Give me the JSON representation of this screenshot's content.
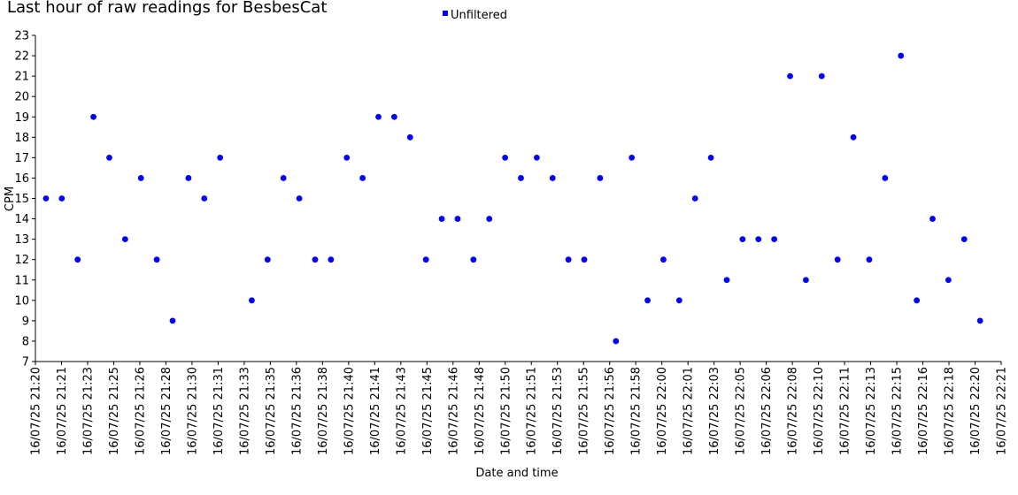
{
  "chart_data": {
    "type": "scatter",
    "title": "Last hour of raw readings for BesbesCat",
    "xlabel": "Date and time",
    "ylabel": "CPM",
    "ylim": [
      7,
      23
    ],
    "yticks": [
      7,
      8,
      9,
      10,
      11,
      12,
      13,
      14,
      15,
      16,
      17,
      18,
      19,
      20,
      21,
      22,
      23
    ],
    "xlim": [
      "16/07/25 21:20",
      "16/07/25 22:21"
    ],
    "xtick_labels": [
      "16/07/25 21:20",
      "16/07/25 21:21",
      "16/07/25 21:23",
      "16/07/25 21:25",
      "16/07/25 21:26",
      "16/07/25 21:28",
      "16/07/25 21:30",
      "16/07/25 21:31",
      "16/07/25 21:33",
      "16/07/25 21:35",
      "16/07/25 21:36",
      "16/07/25 21:38",
      "16/07/25 21:40",
      "16/07/25 21:41",
      "16/07/25 21:43",
      "16/07/25 21:45",
      "16/07/25 21:46",
      "16/07/25 21:48",
      "16/07/25 21:50",
      "16/07/25 21:51",
      "16/07/25 21:53",
      "16/07/25 21:55",
      "16/07/25 21:56",
      "16/07/25 21:58",
      "16/07/25 22:00",
      "16/07/25 22:01",
      "16/07/25 22:03",
      "16/07/25 22:05",
      "16/07/25 22:06",
      "16/07/25 22:08",
      "16/07/25 22:10",
      "16/07/25 22:11",
      "16/07/25 22:13",
      "16/07/25 22:15",
      "16/07/25 22:16",
      "16/07/25 22:18",
      "16/07/25 22:20",
      "16/07/25 22:21"
    ],
    "grid": false,
    "legend_position": "top-center",
    "series": [
      {
        "name": "Unfiltered",
        "color": "#0000ff",
        "x": [
          "16/07/25 21:20:40",
          "16/07/25 21:21:40",
          "16/07/25 21:22:40",
          "16/07/25 21:23:40",
          "16/07/25 21:24:40",
          "16/07/25 21:25:40",
          "16/07/25 21:26:40",
          "16/07/25 21:27:40",
          "16/07/25 21:28:40",
          "16/07/25 21:29:40",
          "16/07/25 21:30:40",
          "16/07/25 21:31:40",
          "16/07/25 21:33:40",
          "16/07/25 21:34:40",
          "16/07/25 21:35:40",
          "16/07/25 21:36:40",
          "16/07/25 21:37:40",
          "16/07/25 21:38:40",
          "16/07/25 21:39:40",
          "16/07/25 21:40:40",
          "16/07/25 21:41:40",
          "16/07/25 21:42:40",
          "16/07/25 21:43:40",
          "16/07/25 21:44:40",
          "16/07/25 21:45:40",
          "16/07/25 21:46:40",
          "16/07/25 21:47:40",
          "16/07/25 21:48:40",
          "16/07/25 21:49:40",
          "16/07/25 21:50:40",
          "16/07/25 21:51:40",
          "16/07/25 21:52:40",
          "16/07/25 21:53:40",
          "16/07/25 21:54:40",
          "16/07/25 21:55:40",
          "16/07/25 21:56:40",
          "16/07/25 21:57:40",
          "16/07/25 21:58:40",
          "16/07/25 21:59:40",
          "16/07/25 22:00:40",
          "16/07/25 22:01:40",
          "16/07/25 22:02:40",
          "16/07/25 22:03:40",
          "16/07/25 22:04:40",
          "16/07/25 22:05:40",
          "16/07/25 22:06:40",
          "16/07/25 22:07:40",
          "16/07/25 22:08:40",
          "16/07/25 22:09:40",
          "16/07/25 22:10:40",
          "16/07/25 22:11:40",
          "16/07/25 22:12:40",
          "16/07/25 22:13:40",
          "16/07/25 22:14:40",
          "16/07/25 22:15:40",
          "16/07/25 22:16:40",
          "16/07/25 22:17:40",
          "16/07/25 22:18:40",
          "16/07/25 22:19:40"
        ],
        "y": [
          15,
          15,
          12,
          19,
          17,
          13,
          16,
          12,
          9,
          16,
          15,
          17,
          10,
          12,
          16,
          15,
          12,
          12,
          17,
          16,
          19,
          19,
          18,
          12,
          14,
          14,
          12,
          14,
          17,
          16,
          17,
          16,
          12,
          12,
          16,
          8,
          17,
          10,
          12,
          10,
          15,
          17,
          11,
          13,
          13,
          13,
          21,
          11,
          21,
          12,
          18,
          12,
          16,
          22,
          10,
          14,
          11,
          13,
          9
        ]
      }
    ]
  }
}
